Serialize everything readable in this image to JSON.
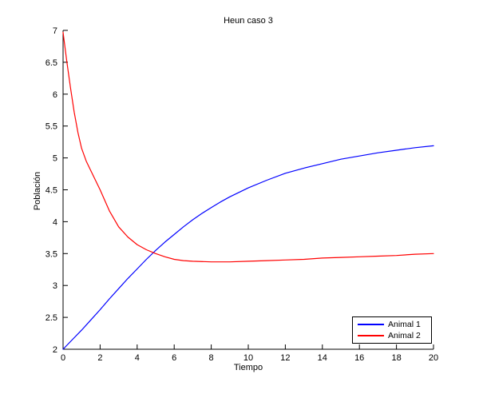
{
  "chart_data": {
    "type": "line",
    "title": "Heun caso 3",
    "xlabel": "Tiempo",
    "ylabel": "Población",
    "xlim": [
      0,
      20
    ],
    "ylim": [
      2,
      7
    ],
    "grid": false,
    "box": false,
    "axis_color": "#000000",
    "background_color": "#ffffff",
    "x_tick_values": [
      0,
      2,
      4,
      6,
      8,
      10,
      12,
      14,
      16,
      18,
      20
    ],
    "x_tick_labels": [
      "0",
      "2",
      "4",
      "6",
      "8",
      "10",
      "12",
      "14",
      "16",
      "18",
      "20"
    ],
    "y_tick_values": [
      2,
      2.5,
      3,
      3.5,
      4,
      4.5,
      5,
      5.5,
      6,
      6.5,
      7
    ],
    "y_tick_labels": [
      "2",
      "2.5",
      "3",
      "3.5",
      "4",
      "4.5",
      "5",
      "5.5",
      "6",
      "6.5",
      "7"
    ],
    "legend_position": "lower right",
    "series": [
      {
        "name": "Animal 1",
        "color": "#0000ff",
        "points": [
          [
            0,
            2.0
          ],
          [
            0.5,
            2.15
          ],
          [
            1,
            2.3
          ],
          [
            1.5,
            2.46
          ],
          [
            2,
            2.62
          ],
          [
            2.5,
            2.79
          ],
          [
            3,
            2.95
          ],
          [
            3.5,
            3.11
          ],
          [
            4,
            3.26
          ],
          [
            4.5,
            3.41
          ],
          [
            5,
            3.55
          ],
          [
            5.5,
            3.68
          ],
          [
            6,
            3.8
          ],
          [
            6.5,
            3.92
          ],
          [
            7,
            4.03
          ],
          [
            7.5,
            4.13
          ],
          [
            8,
            4.22
          ],
          [
            8.5,
            4.31
          ],
          [
            9,
            4.39
          ],
          [
            9.5,
            4.46
          ],
          [
            10,
            4.53
          ],
          [
            11,
            4.65
          ],
          [
            12,
            4.76
          ],
          [
            13,
            4.84
          ],
          [
            14,
            4.91
          ],
          [
            15,
            4.98
          ],
          [
            16,
            5.03
          ],
          [
            17,
            5.08
          ],
          [
            18,
            5.12
          ],
          [
            19,
            5.16
          ],
          [
            20,
            5.19
          ]
        ]
      },
      {
        "name": "Animal 2",
        "color": "#ff0000",
        "points": [
          [
            0,
            6.97
          ],
          [
            0.2,
            6.52
          ],
          [
            0.4,
            6.1
          ],
          [
            0.6,
            5.72
          ],
          [
            0.8,
            5.4
          ],
          [
            1,
            5.15
          ],
          [
            1.25,
            4.95
          ],
          [
            1.5,
            4.8
          ],
          [
            2,
            4.5
          ],
          [
            2.5,
            4.17
          ],
          [
            3,
            3.92
          ],
          [
            3.5,
            3.76
          ],
          [
            4,
            3.64
          ],
          [
            4.5,
            3.56
          ],
          [
            5,
            3.5
          ],
          [
            5.5,
            3.45
          ],
          [
            6,
            3.41
          ],
          [
            6.5,
            3.39
          ],
          [
            7,
            3.38
          ],
          [
            8,
            3.37
          ],
          [
            9,
            3.37
          ],
          [
            10,
            3.38
          ],
          [
            11,
            3.39
          ],
          [
            12,
            3.4
          ],
          [
            13,
            3.41
          ],
          [
            14,
            3.43
          ],
          [
            15,
            3.44
          ],
          [
            16,
            3.45
          ],
          [
            17,
            3.46
          ],
          [
            18,
            3.47
          ],
          [
            19,
            3.49
          ],
          [
            20,
            3.5
          ]
        ]
      }
    ]
  }
}
